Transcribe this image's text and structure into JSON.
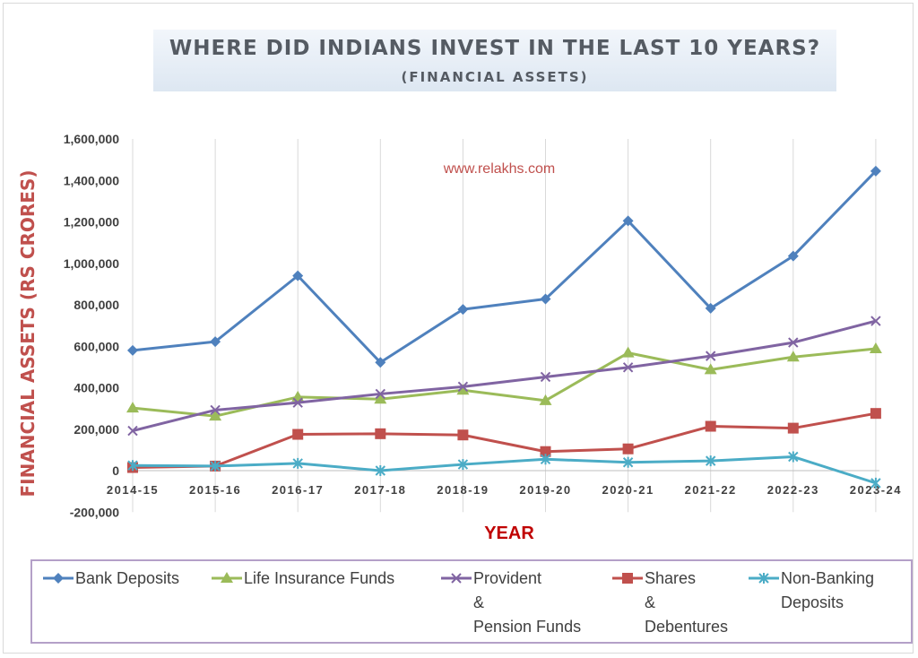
{
  "title": "WHERE DID INDIANS INVEST IN THE LAST 10 YEARS?",
  "subtitle": "(FINANCIAL ASSETS)",
  "watermark": "www.relakhs.com",
  "chart_data": {
    "type": "line",
    "title": "WHERE DID INDIANS INVEST IN THE LAST 10 YEARS?",
    "subtitle": "(FINANCIAL ASSETS)",
    "xlabel": "YEAR",
    "ylabel": "FINANCIAL ASSETS (RS CRORES)",
    "ylim": [
      -200000,
      1600000
    ],
    "yticks": [
      -200000,
      0,
      200000,
      400000,
      600000,
      800000,
      1000000,
      1200000,
      1400000,
      1600000
    ],
    "ytick_labels": [
      "-200,000",
      "0",
      "200,000",
      "400,000",
      "600,000",
      "800,000",
      "1,000,000",
      "1,200,000",
      "1,400,000",
      "1,600,000"
    ],
    "grid": "vertical",
    "legend_position": "bottom",
    "categories": [
      "2014-15",
      "2015-16",
      "2016-17",
      "2017-18",
      "2018-19",
      "2019-20",
      "2020-21",
      "2021-22",
      "2022-23",
      "2023-24"
    ],
    "series": [
      {
        "name": "Bank Deposits",
        "color": "#4f81bd",
        "marker": "diamond",
        "values": [
          580000,
          622000,
          940000,
          522000,
          778000,
          828000,
          1205000,
          783000,
          1035000,
          1445000
        ]
      },
      {
        "name": "Life Insurance Funds",
        "color": "#9bbb59",
        "marker": "triangle",
        "values": [
          302000,
          263000,
          355000,
          345000,
          388000,
          338000,
          568000,
          487000,
          548000,
          588000
        ]
      },
      {
        "name": "Provident\n&\nPension Funds",
        "color": "#8064a2",
        "marker": "x",
        "values": [
          192000,
          292000,
          328000,
          370000,
          405000,
          452000,
          498000,
          553000,
          618000,
          722000
        ]
      },
      {
        "name": "Shares\n&\nDebentures",
        "color": "#c0504d",
        "marker": "square",
        "values": [
          15000,
          22000,
          175000,
          178000,
          172000,
          92000,
          105000,
          214000,
          205000,
          276000
        ]
      },
      {
        "name": "Non-Banking\nDeposits",
        "color": "#4bacc6",
        "marker": "star",
        "values": [
          25000,
          22000,
          35000,
          0,
          30000,
          55000,
          40000,
          47000,
          67000,
          -60000
        ]
      }
    ]
  }
}
